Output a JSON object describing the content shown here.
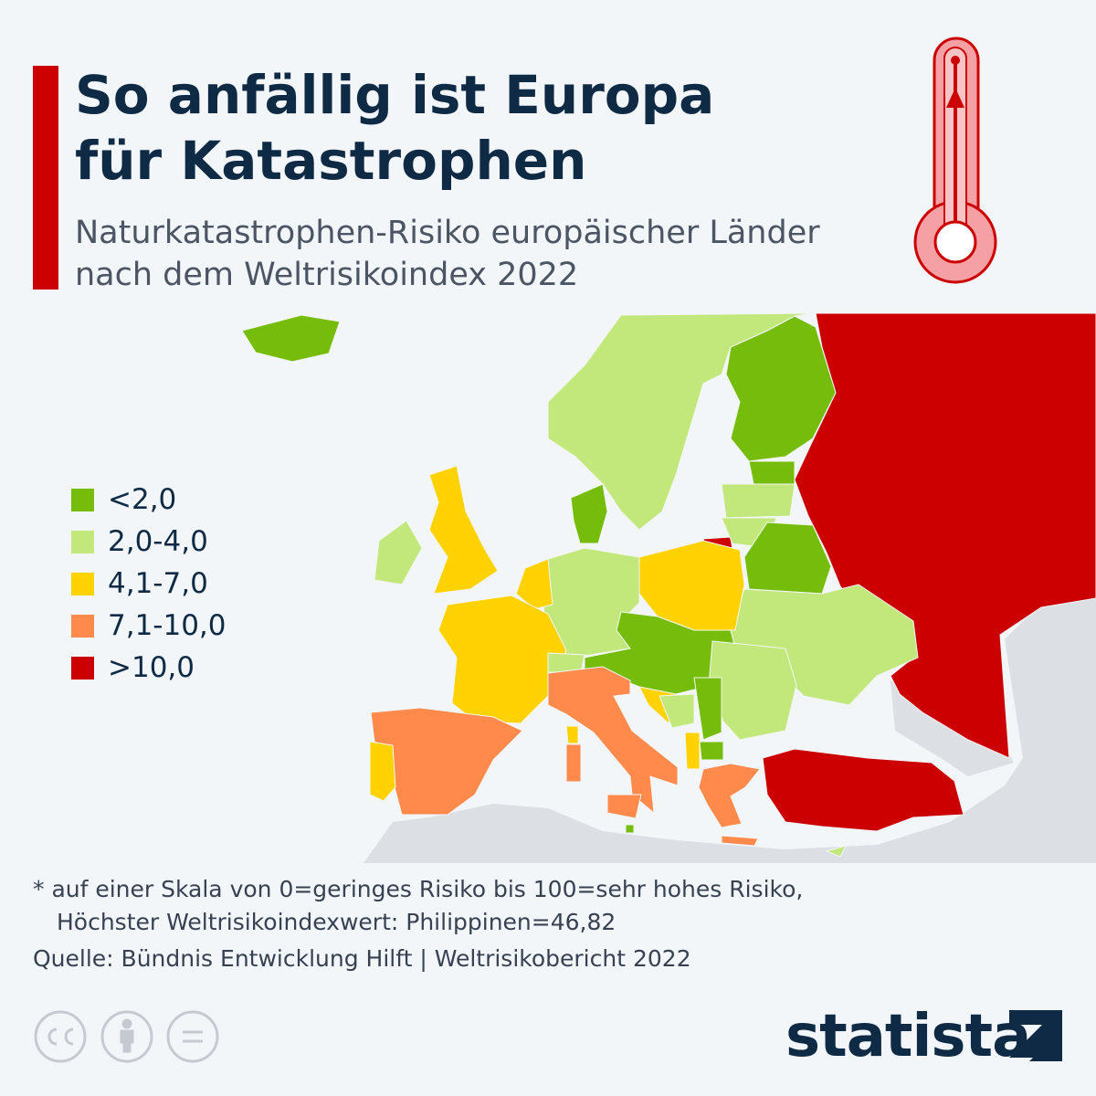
{
  "header": {
    "title": "So anfällig ist Europa für Katastrophen",
    "subtitle": "Naturkatastrophen-Risiko europäischer Länder nach dem Weltrisikoindex 2022"
  },
  "legend": [
    {
      "label": "<2,0",
      "color": "#76bc0b"
    },
    {
      "label": "2,0-4,0",
      "color": "#c2e77a"
    },
    {
      "label": "4,1-7,0",
      "color": "#ffd200"
    },
    {
      "label": "7,1-10,0",
      "color": "#ff8a4c"
    },
    {
      "label": ">10,0",
      "color": "#cc0000"
    }
  ],
  "footer": {
    "notes": [
      "* auf einer Skala von 0=geringes Risiko bis 100=sehr hohes Risiko,",
      "Höchster Weltrisikoindexwert: Philippinen=46,82"
    ],
    "source": "Quelle: Bündnis Entwicklung Hilft | Weltrisikobericht 2022",
    "brand": "statista"
  }
}
